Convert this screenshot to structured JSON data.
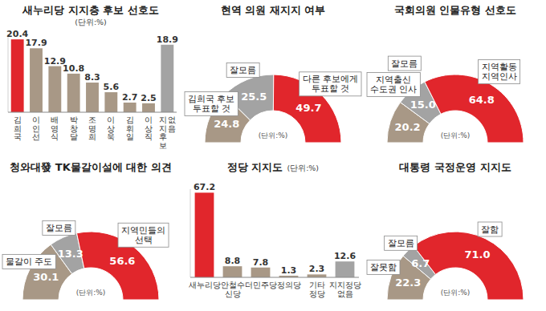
{
  "chart_data": [
    {
      "type": "bar",
      "title": "새누리당 지지층 후보 선호도",
      "subtitle": "(단위:%)",
      "categories": [
        "김희국",
        "이인선",
        "배영식",
        "박창달",
        "조명희",
        "이상욱",
        "김휘일",
        "이상직",
        "지지후보 없음"
      ],
      "values": [
        20.4,
        17.9,
        12.9,
        10.8,
        8.3,
        5.6,
        2.7,
        2.5,
        18.9
      ],
      "colors": [
        "#e1262c",
        "#a89886",
        "#a89886",
        "#a89886",
        "#a89886",
        "#a89886",
        "#a89886",
        "#a89886",
        "#a3a3a3"
      ],
      "ylim": [
        0,
        22
      ],
      "data_labels": true,
      "tick_labels": "x"
    },
    {
      "type": "donut",
      "title": "현역 의원 재지지 여부",
      "subtitle": "(단위:%)",
      "categories": [
        "김희국 후보 투표할 것",
        "잘모름",
        "다른 후보에게 투표할 것"
      ],
      "values": [
        24.8,
        25.5,
        49.7
      ],
      "colors": [
        "#a89886",
        "#a3a3a3",
        "#e1262c"
      ],
      "data_labels": true
    },
    {
      "type": "donut",
      "title": "국회의원 인물유형 선호도",
      "subtitle": "(단위:%)",
      "categories": [
        "지역출신 수도권 인사",
        "잘모름",
        "지역활동 지역인사"
      ],
      "values": [
        20.2,
        15.0,
        64.8
      ],
      "value_labels": [
        "20.2",
        "15.0",
        "64.8"
      ],
      "colors": [
        "#a89886",
        "#a3a3a3",
        "#e1262c"
      ],
      "data_labels": true
    },
    {
      "type": "donut",
      "title": "청와대發 TK물갈이설에 대한 의견",
      "subtitle": "(단위:%)",
      "categories": [
        "물갈이 주도",
        "잘모름",
        "지역민들의 선택"
      ],
      "values": [
        30.1,
        13.3,
        56.6
      ],
      "colors": [
        "#a89886",
        "#a3a3a3",
        "#e1262c"
      ],
      "data_labels": true
    },
    {
      "type": "bar",
      "title": "정당 지지도",
      "subtitle": "(단위:%)",
      "categories": [
        "새누리당",
        "안철수 신당",
        "더민주당",
        "정의당",
        "기타 정당",
        "지지정당 없음"
      ],
      "values": [
        67.2,
        8.8,
        7.8,
        1.3,
        2.3,
        12.6
      ],
      "colors": [
        "#e1262c",
        "#a89886",
        "#a89886",
        "#a89886",
        "#a89886",
        "#a3a3a3"
      ],
      "ylim": [
        0,
        70
      ],
      "data_labels": true,
      "tick_labels": "x"
    },
    {
      "type": "donut",
      "title": "대통령 국정운영 지지도",
      "subtitle": "(단위:%)",
      "categories": [
        "잘못함",
        "잘모름",
        "잘함"
      ],
      "values": [
        22.3,
        6.7,
        71.0
      ],
      "value_labels": [
        "22.3",
        "6.7",
        "71.0"
      ],
      "colors": [
        "#a89886",
        "#a3a3a3",
        "#e1262c"
      ],
      "data_labels": true
    }
  ]
}
